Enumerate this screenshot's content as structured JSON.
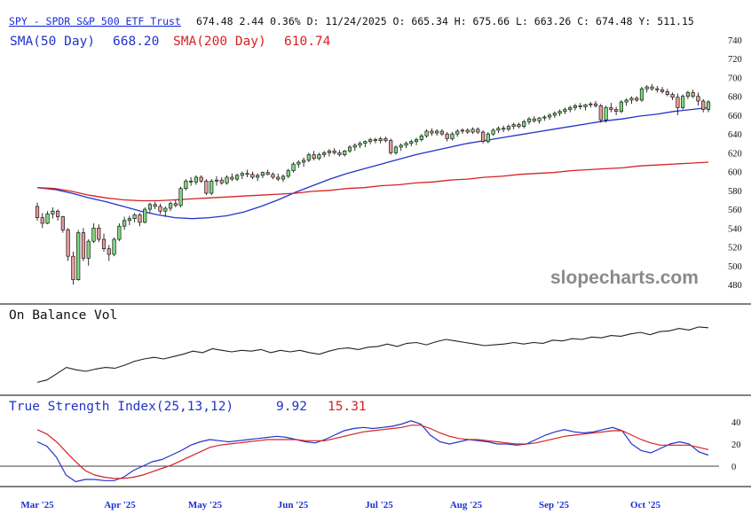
{
  "header": {
    "symbol_link": "SPY - SPDR S&P 500 ETF Trust",
    "quote": "674.48 2.44 0.36% D: 11/24/2025 O: 665.34 H: 675.66 L: 663.26 C: 674.48 Y: 511.15",
    "sma50_label": "SMA(50 Day)",
    "sma50_value": "668.20",
    "sma200_label": "SMA(200 Day)",
    "sma200_value": "610.74"
  },
  "watermark": "slopecharts.com",
  "colors": {
    "up": "#7ed67e",
    "down": "#e79a9a",
    "sma50": "#2233cc",
    "sma200": "#d62222",
    "obv": "#222222",
    "tsi": "#2233cc",
    "tsi_signal": "#d62222"
  },
  "panels": {
    "obv_title": "On Balance Vol",
    "tsi_title": "True Strength Index(25,13,12)",
    "tsi_value": "9.92",
    "tsi_signal_value": "15.31"
  },
  "x_axis": {
    "months": [
      "Mar '25",
      "Apr '25",
      "May '25",
      "Jun '25",
      "Jul '25",
      "Aug '25",
      "Sep '25",
      "Oct '25"
    ]
  },
  "chart_data": [
    {
      "type": "candlestick",
      "title": "SPY - SPDR S&P 500 ETF Trust",
      "y_axis_ticks": [
        "740",
        "720",
        "700",
        "680",
        "660",
        "640",
        "620",
        "600",
        "580",
        "560",
        "540",
        "520",
        "500",
        "480"
      ],
      "ylim": [
        470,
        745
      ],
      "candles": [
        [
          563,
          567,
          548,
          551
        ],
        [
          551,
          556,
          540,
          545
        ],
        [
          545,
          558,
          544,
          555
        ],
        [
          555,
          562,
          550,
          558
        ],
        [
          558,
          560,
          548,
          552
        ],
        [
          552,
          553,
          535,
          538
        ],
        [
          538,
          540,
          505,
          510
        ],
        [
          510,
          515,
          480,
          485
        ],
        [
          485,
          538,
          484,
          535
        ],
        [
          535,
          540,
          505,
          508
        ],
        [
          508,
          528,
          500,
          526
        ],
        [
          526,
          545,
          524,
          540
        ],
        [
          540,
          544,
          525,
          528
        ],
        [
          528,
          534,
          515,
          518
        ],
        [
          518,
          522,
          505,
          512
        ],
        [
          512,
          530,
          510,
          528
        ],
        [
          528,
          545,
          526,
          542
        ],
        [
          542,
          552,
          538,
          548
        ],
        [
          548,
          553,
          543,
          550
        ],
        [
          550,
          556,
          546,
          554
        ],
        [
          554,
          556,
          542,
          546
        ],
        [
          546,
          562,
          545,
          560
        ],
        [
          560,
          567,
          556,
          565
        ],
        [
          565,
          568,
          560,
          563
        ],
        [
          563,
          566,
          555,
          558
        ],
        [
          558,
          563,
          552,
          561
        ],
        [
          561,
          568,
          558,
          566
        ],
        [
          566,
          570,
          562,
          564
        ],
        [
          564,
          584,
          562,
          582
        ],
        [
          582,
          592,
          580,
          590
        ],
        [
          590,
          594,
          585,
          589
        ],
        [
          589,
          596,
          586,
          594
        ],
        [
          594,
          596,
          588,
          590
        ],
        [
          590,
          592,
          575,
          577
        ],
        [
          577,
          592,
          575,
          590
        ],
        [
          590,
          595,
          585,
          591
        ],
        [
          591,
          594,
          586,
          588
        ],
        [
          588,
          596,
          586,
          594
        ],
        [
          594,
          598,
          590,
          592
        ],
        [
          592,
          598,
          590,
          596
        ],
        [
          596,
          600,
          592,
          598
        ],
        [
          598,
          602,
          594,
          597
        ],
        [
          597,
          600,
          592,
          594
        ],
        [
          594,
          598,
          590,
          596
        ],
        [
          596,
          600,
          593,
          599
        ],
        [
          599,
          602,
          596,
          597
        ],
        [
          597,
          599,
          592,
          594
        ],
        [
          594,
          598,
          590,
          592
        ],
        [
          592,
          597,
          589,
          595
        ],
        [
          595,
          603,
          593,
          601
        ],
        [
          601,
          610,
          599,
          608
        ],
        [
          608,
          612,
          604,
          610
        ],
        [
          610,
          615,
          605,
          612
        ],
        [
          612,
          620,
          610,
          618
        ],
        [
          618,
          622,
          612,
          614
        ],
        [
          614,
          620,
          612,
          618
        ],
        [
          618,
          622,
          615,
          620
        ],
        [
          620,
          624,
          616,
          622
        ],
        [
          622,
          625,
          618,
          620
        ],
        [
          620,
          623,
          616,
          618
        ],
        [
          618,
          623,
          616,
          622
        ],
        [
          622,
          628,
          620,
          626
        ],
        [
          626,
          630,
          622,
          628
        ],
        [
          628,
          632,
          625,
          630
        ],
        [
          630,
          633,
          626,
          632
        ],
        [
          632,
          636,
          629,
          634
        ],
        [
          634,
          636,
          630,
          633
        ],
        [
          633,
          637,
          630,
          635
        ],
        [
          635,
          637,
          631,
          633
        ],
        [
          633,
          635,
          618,
          620
        ],
        [
          620,
          628,
          618,
          626
        ],
        [
          626,
          630,
          622,
          628
        ],
        [
          628,
          632,
          625,
          630
        ],
        [
          630,
          634,
          627,
          632
        ],
        [
          632,
          636,
          628,
          634
        ],
        [
          634,
          640,
          632,
          638
        ],
        [
          638,
          645,
          636,
          643
        ],
        [
          643,
          646,
          638,
          641
        ],
        [
          641,
          645,
          638,
          643
        ],
        [
          643,
          645,
          638,
          640
        ],
        [
          640,
          642,
          632,
          635
        ],
        [
          635,
          642,
          633,
          640
        ],
        [
          640,
          645,
          637,
          643
        ],
        [
          643,
          646,
          640,
          644
        ],
        [
          644,
          646,
          640,
          642
        ],
        [
          642,
          647,
          640,
          645
        ],
        [
          645,
          647,
          640,
          642
        ],
        [
          642,
          644,
          630,
          632
        ],
        [
          632,
          642,
          630,
          640
        ],
        [
          640,
          646,
          638,
          644
        ],
        [
          644,
          648,
          641,
          646
        ],
        [
          646,
          649,
          642,
          645
        ],
        [
          645,
          650,
          643,
          648
        ],
        [
          648,
          652,
          645,
          650
        ],
        [
          650,
          652,
          646,
          648
        ],
        [
          648,
          655,
          646,
          653
        ],
        [
          653,
          658,
          650,
          656
        ],
        [
          656,
          659,
          652,
          654
        ],
        [
          654,
          658,
          651,
          657
        ],
        [
          657,
          660,
          654,
          658
        ],
        [
          658,
          662,
          655,
          660
        ],
        [
          660,
          664,
          657,
          662
        ],
        [
          662,
          666,
          659,
          664
        ],
        [
          664,
          668,
          661,
          666
        ],
        [
          666,
          670,
          663,
          668
        ],
        [
          668,
          672,
          665,
          670
        ],
        [
          670,
          673,
          666,
          669
        ],
        [
          669,
          672,
          665,
          671
        ],
        [
          671,
          674,
          668,
          672
        ],
        [
          672,
          675,
          668,
          670
        ],
        [
          670,
          672,
          652,
          655
        ],
        [
          655,
          670,
          652,
          668
        ],
        [
          668,
          673,
          663,
          666
        ],
        [
          666,
          669,
          660,
          664
        ],
        [
          664,
          676,
          662,
          674
        ],
        [
          674,
          678,
          670,
          676
        ],
        [
          676,
          680,
          672,
          678
        ],
        [
          678,
          680,
          674,
          676
        ],
        [
          676,
          690,
          674,
          688
        ],
        [
          688,
          692,
          684,
          690
        ],
        [
          690,
          693,
          686,
          688
        ],
        [
          688,
          691,
          684,
          687
        ],
        [
          687,
          690,
          683,
          685
        ],
        [
          685,
          688,
          680,
          682
        ],
        [
          682,
          684,
          676,
          679
        ],
        [
          679,
          683,
          660,
          668
        ],
        [
          668,
          682,
          666,
          680
        ],
        [
          680,
          686,
          677,
          684
        ],
        [
          684,
          687,
          678,
          680
        ],
        [
          680,
          684,
          670,
          675
        ],
        [
          675,
          677,
          663,
          666
        ],
        [
          666,
          676,
          663,
          674
        ]
      ],
      "series": [
        {
          "name": "SMA(50 Day)",
          "values": [
            583,
            581,
            577,
            572,
            568,
            563,
            558,
            554,
            551,
            550,
            551,
            553,
            557,
            563,
            570,
            578,
            585,
            592,
            598,
            603,
            608,
            613,
            618,
            622,
            626,
            630,
            633,
            636,
            639,
            642,
            645,
            648,
            651,
            654,
            656,
            659,
            661,
            664,
            666,
            668
          ]
        },
        {
          "name": "SMA(200 Day)",
          "values": [
            583,
            582,
            579,
            575,
            572,
            570,
            569,
            569,
            570,
            571,
            572,
            573,
            574,
            575,
            576,
            577,
            579,
            580,
            582,
            583,
            585,
            586,
            588,
            589,
            591,
            592,
            594,
            595,
            597,
            598,
            599,
            601,
            602,
            603,
            604,
            606,
            607,
            608,
            609,
            610
          ]
        }
      ]
    },
    {
      "type": "line",
      "title": "On Balance Vol",
      "series": [
        {
          "name": "On Balance Vol",
          "values": [
            3,
            6,
            14,
            22,
            19,
            17,
            20,
            22,
            21,
            25,
            30,
            33,
            35,
            33,
            36,
            39,
            43,
            41,
            46,
            44,
            42,
            44,
            43,
            45,
            41,
            44,
            42,
            44,
            41,
            39,
            43,
            46,
            47,
            45,
            48,
            49,
            52,
            49,
            53,
            54,
            51,
            55,
            58,
            56,
            54,
            52,
            50,
            51,
            52,
            54,
            52,
            54,
            53,
            57,
            56,
            59,
            58,
            61,
            60,
            63,
            62,
            65,
            67,
            64,
            68,
            69,
            72,
            70,
            74,
            73
          ]
        }
      ]
    },
    {
      "type": "line",
      "title": "True Strength Index(25,13,12)",
      "y_axis_ticks": [
        "40",
        "20",
        "0"
      ],
      "ylim": [
        -22,
        44
      ],
      "series": [
        {
          "name": "True Strength Index(25,13,12)",
          "values": [
            22,
            18,
            8,
            -8,
            -14,
            -12,
            -12,
            -13,
            -13,
            -10,
            -4,
            0,
            4,
            6,
            10,
            14,
            19,
            22,
            24,
            23,
            22,
            23,
            24,
            25,
            26,
            27,
            26,
            24,
            22,
            21,
            24,
            28,
            32,
            34,
            35,
            34,
            35,
            36,
            38,
            41,
            38,
            28,
            22,
            20,
            22,
            24,
            23,
            22,
            20,
            20,
            19,
            20,
            24,
            28,
            31,
            33,
            31,
            30,
            31,
            33,
            35,
            32,
            20,
            14,
            12,
            16,
            20,
            22,
            20,
            13,
            10
          ]
        },
        {
          "name": "Signal",
          "values": [
            33,
            29,
            22,
            13,
            4,
            -4,
            -8,
            -10,
            -11,
            -11,
            -10,
            -8,
            -5,
            -2,
            1,
            5,
            9,
            13,
            17,
            19,
            20,
            21,
            22,
            23,
            24,
            24,
            24,
            24,
            23,
            23,
            23,
            25,
            27,
            29,
            31,
            32,
            33,
            34,
            35,
            37,
            37,
            34,
            30,
            27,
            25,
            24,
            24,
            23,
            22,
            21,
            20,
            20,
            21,
            23,
            25,
            27,
            28,
            29,
            30,
            31,
            32,
            32,
            28,
            24,
            21,
            19,
            19,
            19,
            19,
            17,
            15
          ]
        }
      ]
    }
  ]
}
